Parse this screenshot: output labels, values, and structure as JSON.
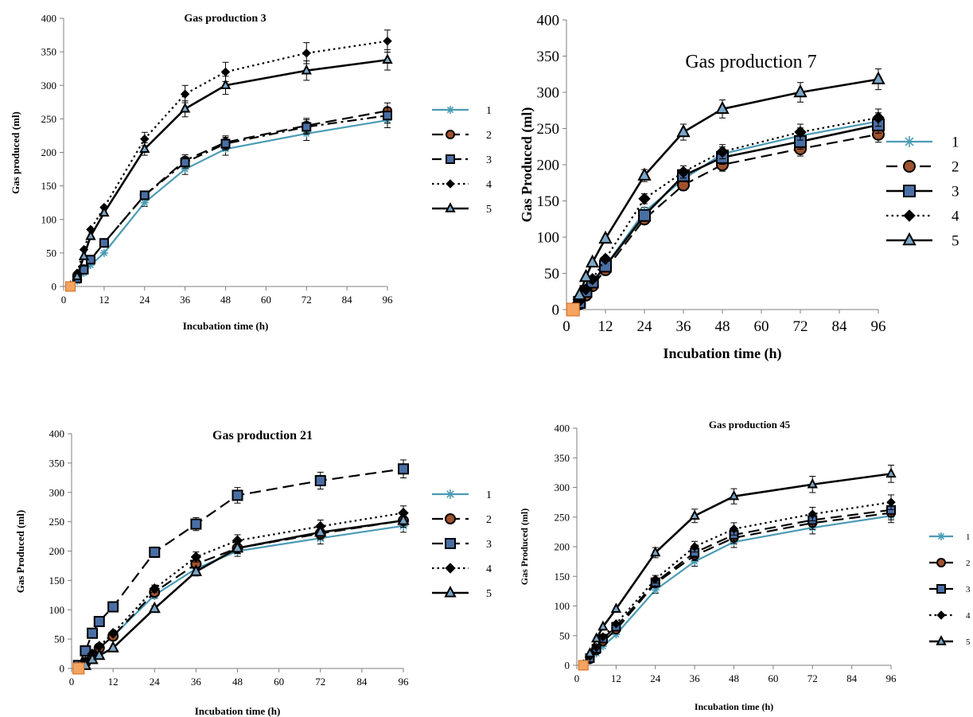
{
  "figure": {
    "charts": [
      {
        "title": "Gas production  3",
        "xlabel": "Incubation   time (h)",
        "ylabel": "Gas produced  (ml)"
      },
      {
        "title": "Gas production 7",
        "xlabel": "Incubation   time (h)",
        "ylabel": "Gas Produced  (ml)"
      },
      {
        "title": "Gas production  21",
        "xlabel": "Incubation   time (h)",
        "ylabel": "Gas Produced  (ml)"
      },
      {
        "title": "Gas production  45",
        "xlabel": "Incubation  time (h)",
        "ylabel": "Gas Produced  (ml)"
      }
    ]
  },
  "chart_data": [
    {
      "type": "line",
      "title": "Gas production  3",
      "xlabel": "Incubation   time (h)",
      "ylabel": "Gas produced  (ml)",
      "xlim": [
        0,
        96
      ],
      "ylim": [
        0,
        400
      ],
      "xticks": [
        "0",
        "12",
        "24",
        "36",
        "48",
        "60",
        "72",
        "84",
        "96"
      ],
      "yticks": [
        "0",
        "50",
        "100",
        "150",
        "200",
        "250",
        "300",
        "350",
        "400"
      ],
      "legend_position": "right",
      "x": [
        2,
        4,
        6,
        8,
        12,
        24,
        36,
        48,
        72,
        96
      ],
      "series": [
        {
          "name": "1",
          "style": "solid",
          "color": "#4a9bb5",
          "marker": "asterisk",
          "values": [
            0,
            8,
            20,
            32,
            50,
            125,
            175,
            205,
            228,
            248
          ]
        },
        {
          "name": "2",
          "style": "dashed",
          "color": "#000000",
          "marker": "circle",
          "values": [
            0,
            12,
            26,
            40,
            65,
            136,
            188,
            215,
            240,
            262
          ]
        },
        {
          "name": "3",
          "style": "dashdot",
          "color": "#000000",
          "marker": "square",
          "values": [
            0,
            12,
            25,
            40,
            65,
            136,
            185,
            213,
            238,
            255
          ]
        },
        {
          "name": "4",
          "style": "dotted",
          "color": "#000000",
          "marker": "diamond",
          "values": [
            0,
            20,
            55,
            85,
            118,
            220,
            287,
            320,
            348,
            366
          ]
        },
        {
          "name": "5",
          "style": "solid",
          "color": "#000000",
          "marker": "triangle",
          "values": [
            0,
            15,
            45,
            75,
            110,
            205,
            265,
            300,
            322,
            338
          ]
        }
      ]
    },
    {
      "type": "line",
      "title": "Gas production 7",
      "xlabel": "Incubation   time (h)",
      "ylabel": "Gas Produced  (ml)",
      "xlim": [
        0,
        96
      ],
      "ylim": [
        0,
        400
      ],
      "xticks": [
        "0",
        "12",
        "24",
        "36",
        "48",
        "60",
        "72",
        "84",
        "96"
      ],
      "yticks": [
        "0",
        "50",
        "100",
        "150",
        "200",
        "250",
        "300",
        "350",
        "400"
      ],
      "legend_position": "right",
      "x": [
        2,
        4,
        6,
        8,
        12,
        24,
        36,
        48,
        72,
        96
      ],
      "series": [
        {
          "name": "1",
          "style": "solid",
          "color": "#4a9bb5",
          "marker": "asterisk",
          "values": [
            0,
            10,
            25,
            38,
            60,
            135,
            180,
            215,
            240,
            260
          ]
        },
        {
          "name": "2",
          "style": "dashed",
          "color": "#000000",
          "marker": "circle",
          "values": [
            0,
            8,
            20,
            33,
            55,
            125,
            172,
            200,
            222,
            242
          ]
        },
        {
          "name": "3",
          "style": "solid",
          "color": "#000000",
          "marker": "square",
          "values": [
            0,
            10,
            25,
            38,
            60,
            130,
            185,
            210,
            232,
            255
          ]
        },
        {
          "name": "4",
          "style": "dotted",
          "color": "#000000",
          "marker": "diamond",
          "values": [
            0,
            12,
            28,
            42,
            70,
            153,
            190,
            218,
            245,
            265
          ]
        },
        {
          "name": "5",
          "style": "solid",
          "color": "#000000",
          "marker": "triangle",
          "values": [
            0,
            20,
            45,
            65,
            98,
            185,
            245,
            277,
            300,
            318
          ]
        }
      ]
    },
    {
      "type": "line",
      "title": "Gas production  21",
      "xlabel": "Incubation   time (h)",
      "ylabel": "Gas Produced  (ml)",
      "xlim": [
        0,
        96
      ],
      "ylim": [
        0,
        400
      ],
      "xticks": [
        "0",
        "12",
        "24",
        "36",
        "48",
        "60",
        "72",
        "84",
        "96"
      ],
      "yticks": [
        "0",
        "50",
        "100",
        "150",
        "200",
        "250",
        "300",
        "350",
        "400"
      ],
      "legend_position": "right",
      "x": [
        2,
        4,
        6,
        8,
        12,
        24,
        36,
        48,
        72,
        96
      ],
      "series": [
        {
          "name": "1",
          "style": "solid",
          "color": "#4a9bb5",
          "marker": "asterisk",
          "values": [
            0,
            8,
            22,
            35,
            55,
            125,
            170,
            200,
            222,
            243
          ]
        },
        {
          "name": "2",
          "style": "dashed",
          "color": "#000000",
          "marker": "circle",
          "values": [
            0,
            10,
            22,
            35,
            55,
            130,
            178,
            205,
            230,
            252
          ]
        },
        {
          "name": "3",
          "style": "dashed",
          "color": "#000000",
          "marker": "square",
          "values": [
            5,
            30,
            60,
            80,
            105,
            198,
            246,
            295,
            320,
            340
          ]
        },
        {
          "name": "4",
          "style": "dotted",
          "color": "#000000",
          "marker": "diamond",
          "values": [
            0,
            12,
            25,
            38,
            60,
            136,
            190,
            218,
            242,
            265
          ]
        },
        {
          "name": "5",
          "style": "solid",
          "color": "#000000",
          "marker": "triangle",
          "values": [
            0,
            5,
            15,
            22,
            35,
            102,
            165,
            205,
            232,
            252
          ]
        }
      ]
    },
    {
      "type": "line",
      "title": "Gas production  45",
      "xlabel": "Incubation  time (h)",
      "ylabel": "Gas Produced  (ml)",
      "xlim": [
        0,
        96
      ],
      "ylim": [
        0,
        400
      ],
      "xticks": [
        "0",
        "12",
        "24",
        "36",
        "48",
        "60",
        "72",
        "84",
        "96"
      ],
      "yticks": [
        "0",
        "50",
        "100",
        "150",
        "200",
        "250",
        "300",
        "350",
        "400"
      ],
      "legend_position": "right",
      "x": [
        2,
        4,
        6,
        8,
        12,
        24,
        36,
        48,
        72,
        96
      ],
      "series": [
        {
          "name": "1",
          "style": "solid",
          "color": "#4a9bb5",
          "marker": "asterisk",
          "values": [
            0,
            8,
            20,
            32,
            52,
            127,
            175,
            208,
            232,
            252
          ]
        },
        {
          "name": "2",
          "style": "dashed",
          "color": "#000000",
          "marker": "circle",
          "values": [
            0,
            10,
            25,
            40,
            60,
            138,
            185,
            215,
            240,
            257
          ]
        },
        {
          "name": "3",
          "style": "dashed",
          "color": "#000000",
          "marker": "square",
          "values": [
            0,
            12,
            28,
            45,
            65,
            140,
            190,
            220,
            245,
            262
          ]
        },
        {
          "name": "4",
          "style": "dotted",
          "color": "#000000",
          "marker": "diamond",
          "values": [
            0,
            15,
            30,
            48,
            70,
            145,
            200,
            230,
            255,
            275
          ]
        },
        {
          "name": "5",
          "style": "solid",
          "color": "#000000",
          "marker": "triangle",
          "values": [
            0,
            20,
            45,
            65,
            95,
            190,
            252,
            285,
            305,
            323
          ]
        }
      ]
    }
  ]
}
